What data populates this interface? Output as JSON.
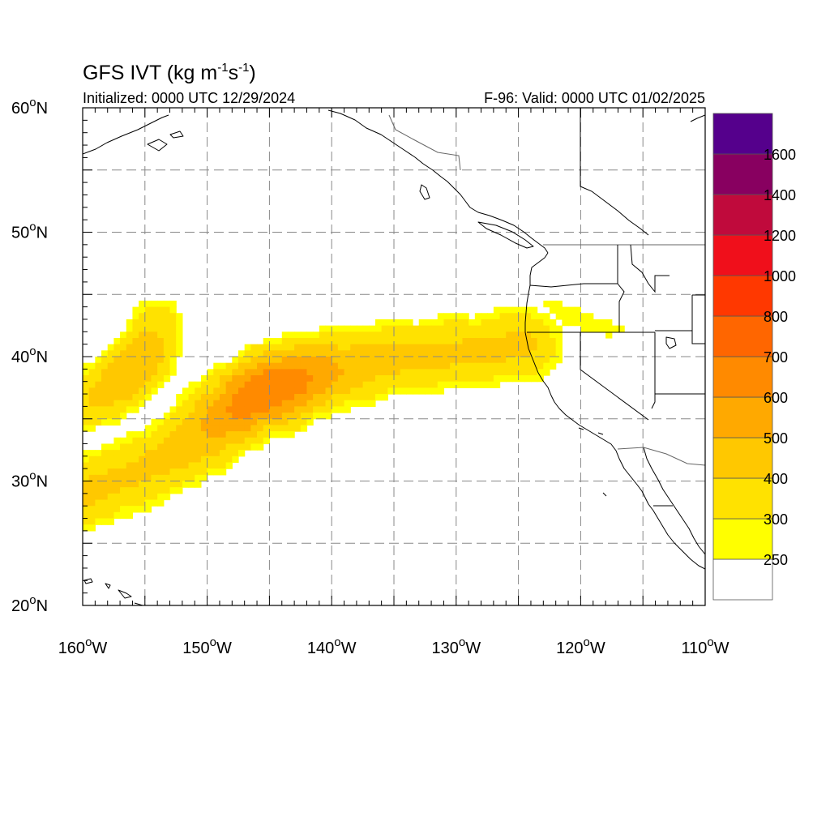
{
  "header": {
    "title_prefix": "GFS IVT (kg m",
    "title_exp1": "-1",
    "title_mid": "s",
    "title_exp2": "-1",
    "title_suffix": ")",
    "initialized": "Initialized: 0000 UTC 12/29/2024",
    "valid": "F-96: Valid: 0000 UTC 01/02/2025"
  },
  "map": {
    "projection": "cylindrical equidistant",
    "lon_range": [
      -160,
      -110
    ],
    "lat_range": [
      20,
      60
    ],
    "grid": true,
    "land_color": "#ffffff",
    "ocean_color": "#ffffff",
    "lat_ticks": [
      {
        "value": 60,
        "label": "60",
        "hem": "N"
      },
      {
        "value": 50,
        "label": "50",
        "hem": "N"
      },
      {
        "value": 40,
        "label": "40",
        "hem": "N"
      },
      {
        "value": 30,
        "label": "30",
        "hem": "N"
      },
      {
        "value": 20,
        "label": "20",
        "hem": "N"
      }
    ],
    "lon_ticks": [
      {
        "value": -160,
        "label": "160",
        "hem": "W"
      },
      {
        "value": -150,
        "label": "150",
        "hem": "W"
      },
      {
        "value": -140,
        "label": "140",
        "hem": "W"
      },
      {
        "value": -130,
        "label": "130",
        "hem": "W"
      },
      {
        "value": -120,
        "label": "120",
        "hem": "W"
      },
      {
        "value": -110,
        "label": "110",
        "hem": "W"
      }
    ],
    "ivt_features": [
      {
        "name": "main atmospheric river",
        "path": [
          [
            -160,
            29
          ],
          [
            -156,
            30.5
          ],
          [
            -152,
            32.5
          ],
          [
            -149,
            35
          ],
          [
            -146,
            37
          ],
          [
            -142,
            38.5
          ],
          [
            -137,
            39.5
          ],
          [
            -133,
            40
          ],
          [
            -128,
            40.5
          ],
          [
            -124.5,
            41
          ]
        ],
        "width_deg": 3.2,
        "peak": 700,
        "peak_at": [
          -145,
          37
        ]
      },
      {
        "name": "western plume",
        "path": [
          [
            -160,
            36
          ],
          [
            -157,
            38
          ],
          [
            -155,
            40
          ],
          [
            -154,
            42.5
          ]
        ],
        "width_deg": 2.6,
        "peak": 500
      },
      {
        "name": "inland plume",
        "path": [
          [
            -123.5,
            45
          ],
          [
            -121.5,
            43.5
          ],
          [
            -118,
            42.3
          ],
          [
            -116,
            42
          ]
        ],
        "width_deg": 1.2,
        "peak": 300
      }
    ]
  },
  "colorbar": {
    "levels": [
      250,
      300,
      400,
      500,
      600,
      700,
      800,
      1000,
      1200,
      1400,
      1600
    ],
    "colors": [
      "#ffffff",
      "#ffff00",
      "#ffe200",
      "#ffc800",
      "#ffa900",
      "#ff8a00",
      "#ff6600",
      "#ff3800",
      "#f00f1b",
      "#c00a3c",
      "#880060",
      "#55008c"
    ],
    "labels": [
      "250",
      "300",
      "400",
      "500",
      "600",
      "700",
      "800",
      "1000",
      "1200",
      "1400",
      "1600"
    ]
  }
}
